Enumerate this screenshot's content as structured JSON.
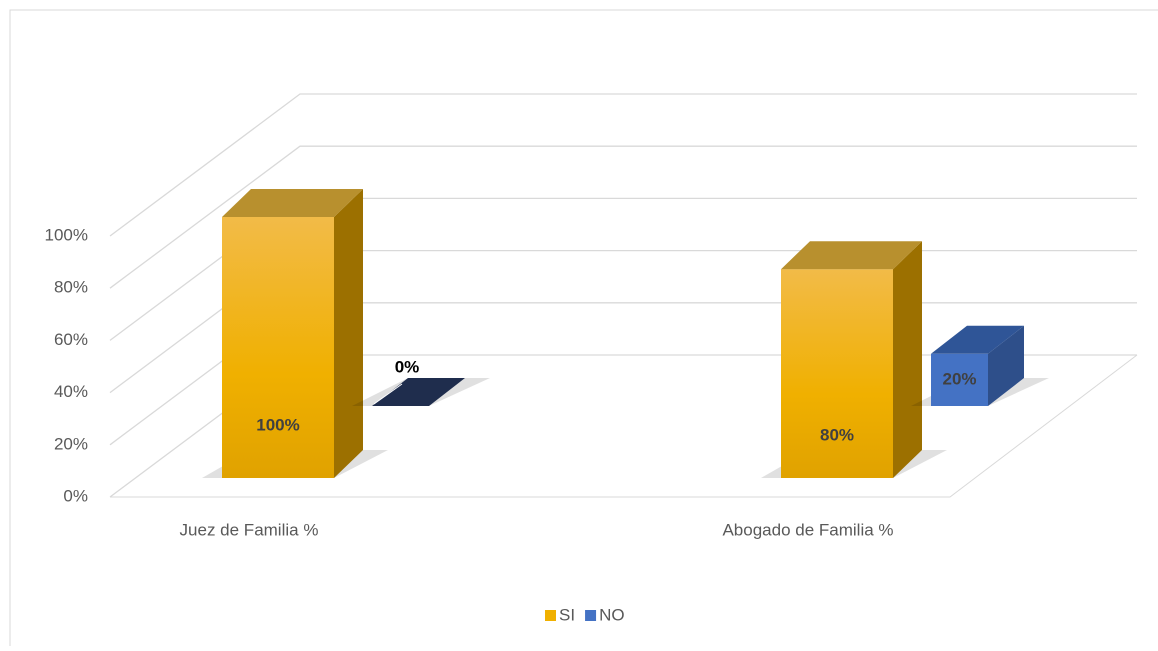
{
  "chart_data": {
    "type": "bar3d",
    "categories": [
      "Juez de Familia %",
      "Abogado de Familia %"
    ],
    "series": [
      {
        "name": "SI",
        "color": "#f0b000",
        "values": [
          100,
          80
        ],
        "value_labels": [
          "100%",
          "80%"
        ]
      },
      {
        "name": "NO",
        "color": "#4472c4",
        "values": [
          0,
          20
        ],
        "value_labels": [
          "0%",
          "20%"
        ]
      }
    ],
    "ylim": [
      0,
      100
    ],
    "yticks": [
      {
        "value": 0,
        "label": "0%"
      },
      {
        "value": 20,
        "label": "20%"
      },
      {
        "value": 40,
        "label": "40%"
      },
      {
        "value": 60,
        "label": "60%"
      },
      {
        "value": 80,
        "label": "80%"
      },
      {
        "value": 100,
        "label": "100%"
      }
    ],
    "grid": true,
    "legend": "bottom"
  }
}
